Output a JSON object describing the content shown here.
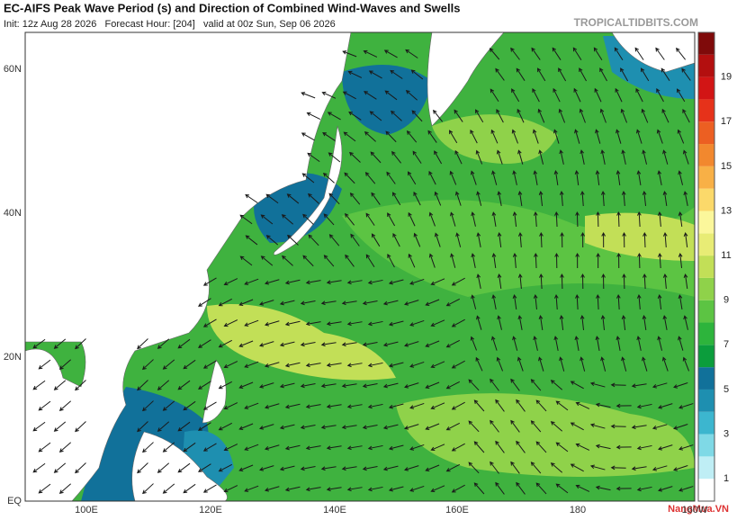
{
  "header": {
    "title": "EC-AIFS Peak Wave Period (s) and Direction of Combined Wind-Waves and Swells",
    "subtitle": "Init: 12z Aug 28 2026   Forecast Hour: [204]   valid at 00z Sun, Sep 06 2026",
    "site": "TROPICALTIDBITS.COM"
  },
  "map": {
    "lat_labels": [
      "60N",
      "40N",
      "20N",
      "EQ"
    ],
    "lon_labels": [
      "100E",
      "120E",
      "140E",
      "160E",
      "180",
      "160W"
    ]
  },
  "colorbar": {
    "labels": [
      1,
      3,
      5,
      7,
      9,
      11,
      13,
      15,
      17,
      19
    ],
    "range": [
      0,
      21
    ],
    "colors": [
      "#ffffff",
      "#bfeef5",
      "#7fd9e6",
      "#3cb6cf",
      "#1e8fb0",
      "#11719a",
      "#0b9d3c",
      "#2db43c",
      "#5cc443",
      "#8fd24a",
      "#c2df57",
      "#e8ec75",
      "#fbf79b",
      "#fbd96a",
      "#f8b046",
      "#f2882e",
      "#ec5f22",
      "#e6321a",
      "#d21515",
      "#b30f0f",
      "#7f0a0a"
    ]
  },
  "watermark": "NangMua.VN"
}
